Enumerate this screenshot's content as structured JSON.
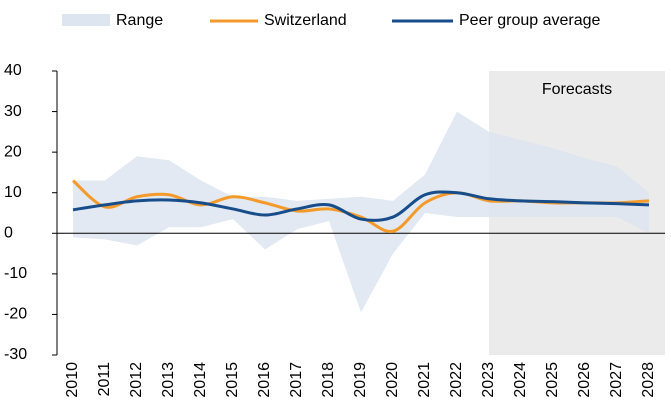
{
  "chart_data": {
    "type": "line",
    "categories": [
      "2010",
      "2011",
      "2012",
      "2013",
      "2014",
      "2015",
      "2016",
      "2017",
      "2018",
      "2019",
      "2020",
      "2021",
      "2022",
      "2023",
      "2024",
      "2025",
      "2026",
      "2027",
      "2028"
    ],
    "range": {
      "name": "Range",
      "color": "#dde5f0",
      "low": [
        -1,
        -1.5,
        -3,
        1.5,
        1.5,
        3.5,
        -4,
        1,
        3,
        -19.5,
        -5,
        5,
        4,
        4,
        4,
        4,
        4,
        4,
        0
      ],
      "high": [
        13,
        13,
        19,
        18,
        13,
        9,
        9,
        8,
        8.5,
        9,
        8,
        14.5,
        30,
        25,
        23,
        21,
        18.5,
        16.5,
        10
      ]
    },
    "series": [
      {
        "name": "Switzerland",
        "color": "#f39a2b",
        "values": [
          13,
          6.5,
          9,
          9.5,
          7,
          9,
          7.5,
          5.5,
          6,
          4,
          0.5,
          7.5,
          10,
          8,
          8,
          7.5,
          7.5,
          7.5,
          8
        ]
      },
      {
        "name": "Peer group average",
        "color": "#174d8a",
        "values": [
          5.8,
          7,
          8,
          8.2,
          7.5,
          6,
          4.5,
          6,
          7,
          3.5,
          4,
          9.5,
          10,
          8.5,
          8,
          7.8,
          7.5,
          7.3,
          7
        ]
      }
    ],
    "annotation": {
      "text": "Forecasts",
      "from": "2023",
      "color": "#ebebeb"
    },
    "ylim": [
      -30,
      40
    ],
    "yticks": [
      -30,
      -20,
      -10,
      0,
      10,
      20,
      30,
      40
    ]
  }
}
